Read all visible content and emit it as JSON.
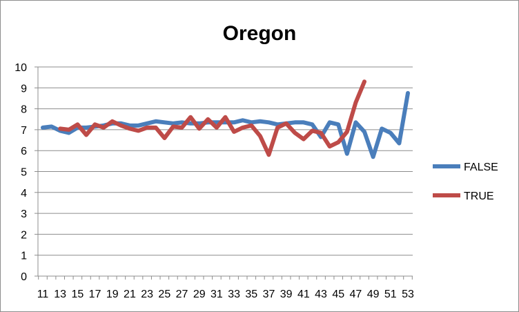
{
  "chart_data": {
    "type": "line",
    "title": "Oregon",
    "xlabel": "",
    "ylabel": "",
    "ylim": [
      0,
      10
    ],
    "yticks": [
      0,
      1,
      2,
      3,
      4,
      5,
      6,
      7,
      8,
      9,
      10
    ],
    "x": [
      11,
      12,
      13,
      14,
      15,
      16,
      17,
      18,
      19,
      20,
      21,
      22,
      23,
      24,
      25,
      26,
      27,
      28,
      29,
      30,
      31,
      32,
      33,
      34,
      35,
      36,
      37,
      38,
      39,
      40,
      41,
      42,
      43,
      44,
      45,
      46,
      47,
      48,
      49,
      50,
      51,
      52,
      53
    ],
    "xticks": [
      11,
      13,
      15,
      17,
      19,
      21,
      23,
      25,
      27,
      29,
      31,
      33,
      35,
      37,
      39,
      41,
      43,
      45,
      47,
      49,
      51,
      53
    ],
    "grid": "horizontal",
    "legend_position": "right",
    "series": [
      {
        "name": "FALSE",
        "color": "#4a7ebb",
        "values": [
          7.1,
          7.15,
          6.95,
          6.85,
          7.1,
          7.1,
          7.15,
          7.2,
          7.3,
          7.3,
          7.2,
          7.2,
          7.3,
          7.4,
          7.35,
          7.3,
          7.35,
          7.3,
          7.3,
          7.35,
          7.35,
          7.35,
          7.35,
          7.45,
          7.35,
          7.4,
          7.35,
          7.25,
          7.3,
          7.35,
          7.35,
          7.25,
          6.65,
          7.35,
          7.25,
          5.85,
          7.35,
          6.9,
          5.7,
          7.05,
          6.85,
          6.35,
          8.75
        ]
      },
      {
        "name": "TRUE",
        "color": "#be4b48",
        "values": [
          null,
          null,
          7.05,
          7.0,
          7.25,
          6.75,
          7.25,
          7.1,
          7.4,
          7.2,
          7.05,
          6.95,
          7.1,
          7.1,
          6.6,
          7.15,
          7.1,
          7.6,
          7.05,
          7.5,
          7.1,
          7.6,
          6.9,
          7.1,
          7.2,
          6.7,
          5.8,
          7.1,
          7.3,
          6.85,
          6.55,
          6.95,
          6.85,
          6.2,
          6.4,
          6.9,
          8.3,
          9.3,
          null,
          null,
          null,
          null,
          null
        ]
      }
    ]
  }
}
